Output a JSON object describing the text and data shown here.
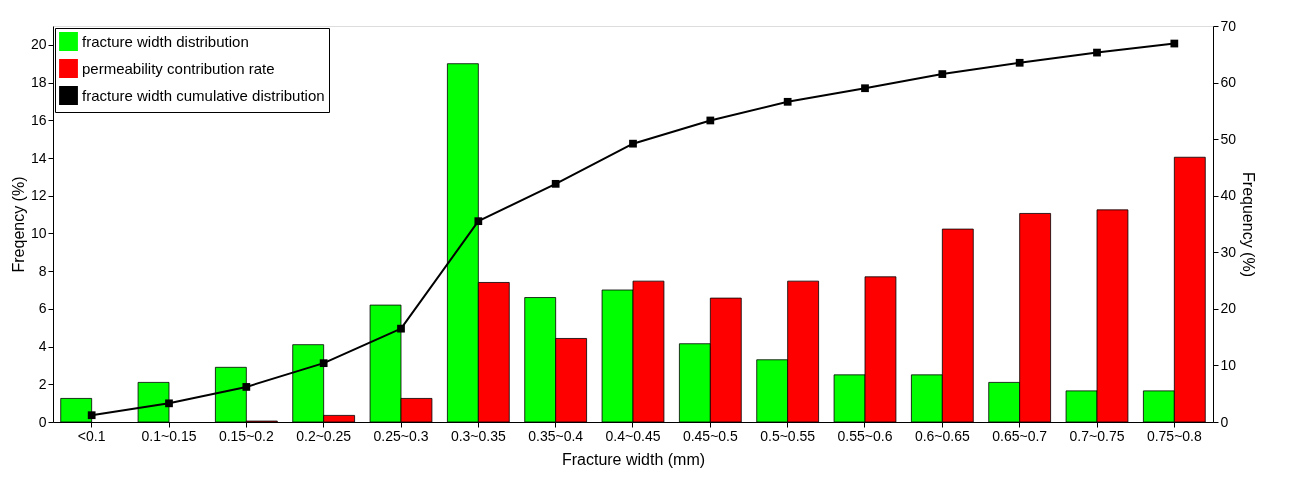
{
  "chart_data": {
    "type": "bar",
    "xlabel": "Fracture width (mm)",
    "ylabel": "Freqency (%)",
    "y2label": "Frequency (%)",
    "categories": [
      "<0.1",
      "0.1~0.15",
      "0.15~0.2",
      "0.2~0.25",
      "0.25~0.3",
      "0.3~0.35",
      "0.35~0.4",
      "0.4~0.45",
      "0.45~0.5",
      "0.5~0.55",
      "0.55~0.6",
      "0.6~0.65",
      "0.65~0.7",
      "0.7~0.75",
      "0.75~0.8"
    ],
    "series": [
      {
        "name": "fracture width distribution",
        "color": "#00ff00",
        "values": [
          1.25,
          2.1,
          2.9,
          4.1,
          6.2,
          19.0,
          6.6,
          7.0,
          4.15,
          3.3,
          2.5,
          2.5,
          2.1,
          1.65,
          1.65
        ]
      },
      {
        "name": "permeability contribution rate",
        "color": "#ff0000",
        "values": [
          0,
          0,
          0.05,
          0.35,
          1.25,
          7.4,
          4.43,
          7.47,
          6.57,
          7.47,
          7.7,
          10.23,
          11.06,
          11.25,
          14.04
        ]
      },
      {
        "name": "fracture width cumulative distribution",
        "color": "#000000",
        "type": "line",
        "axis": "y2",
        "marker": "square",
        "values": [
          1.2,
          3.3,
          6.2,
          10.4,
          16.5,
          35.5,
          42.1,
          49.2,
          53.3,
          56.6,
          59.0,
          61.5,
          63.5,
          65.3,
          66.9
        ]
      }
    ],
    "ylim": [
      0,
      21
    ],
    "yticks": [
      0,
      2,
      4,
      6,
      8,
      10,
      12,
      14,
      16,
      18,
      20
    ],
    "y2lim": [
      0,
      70
    ],
    "y2ticks": [
      0,
      10,
      20,
      30,
      40,
      50,
      60,
      70
    ],
    "legend": "top left",
    "grid": false
  }
}
